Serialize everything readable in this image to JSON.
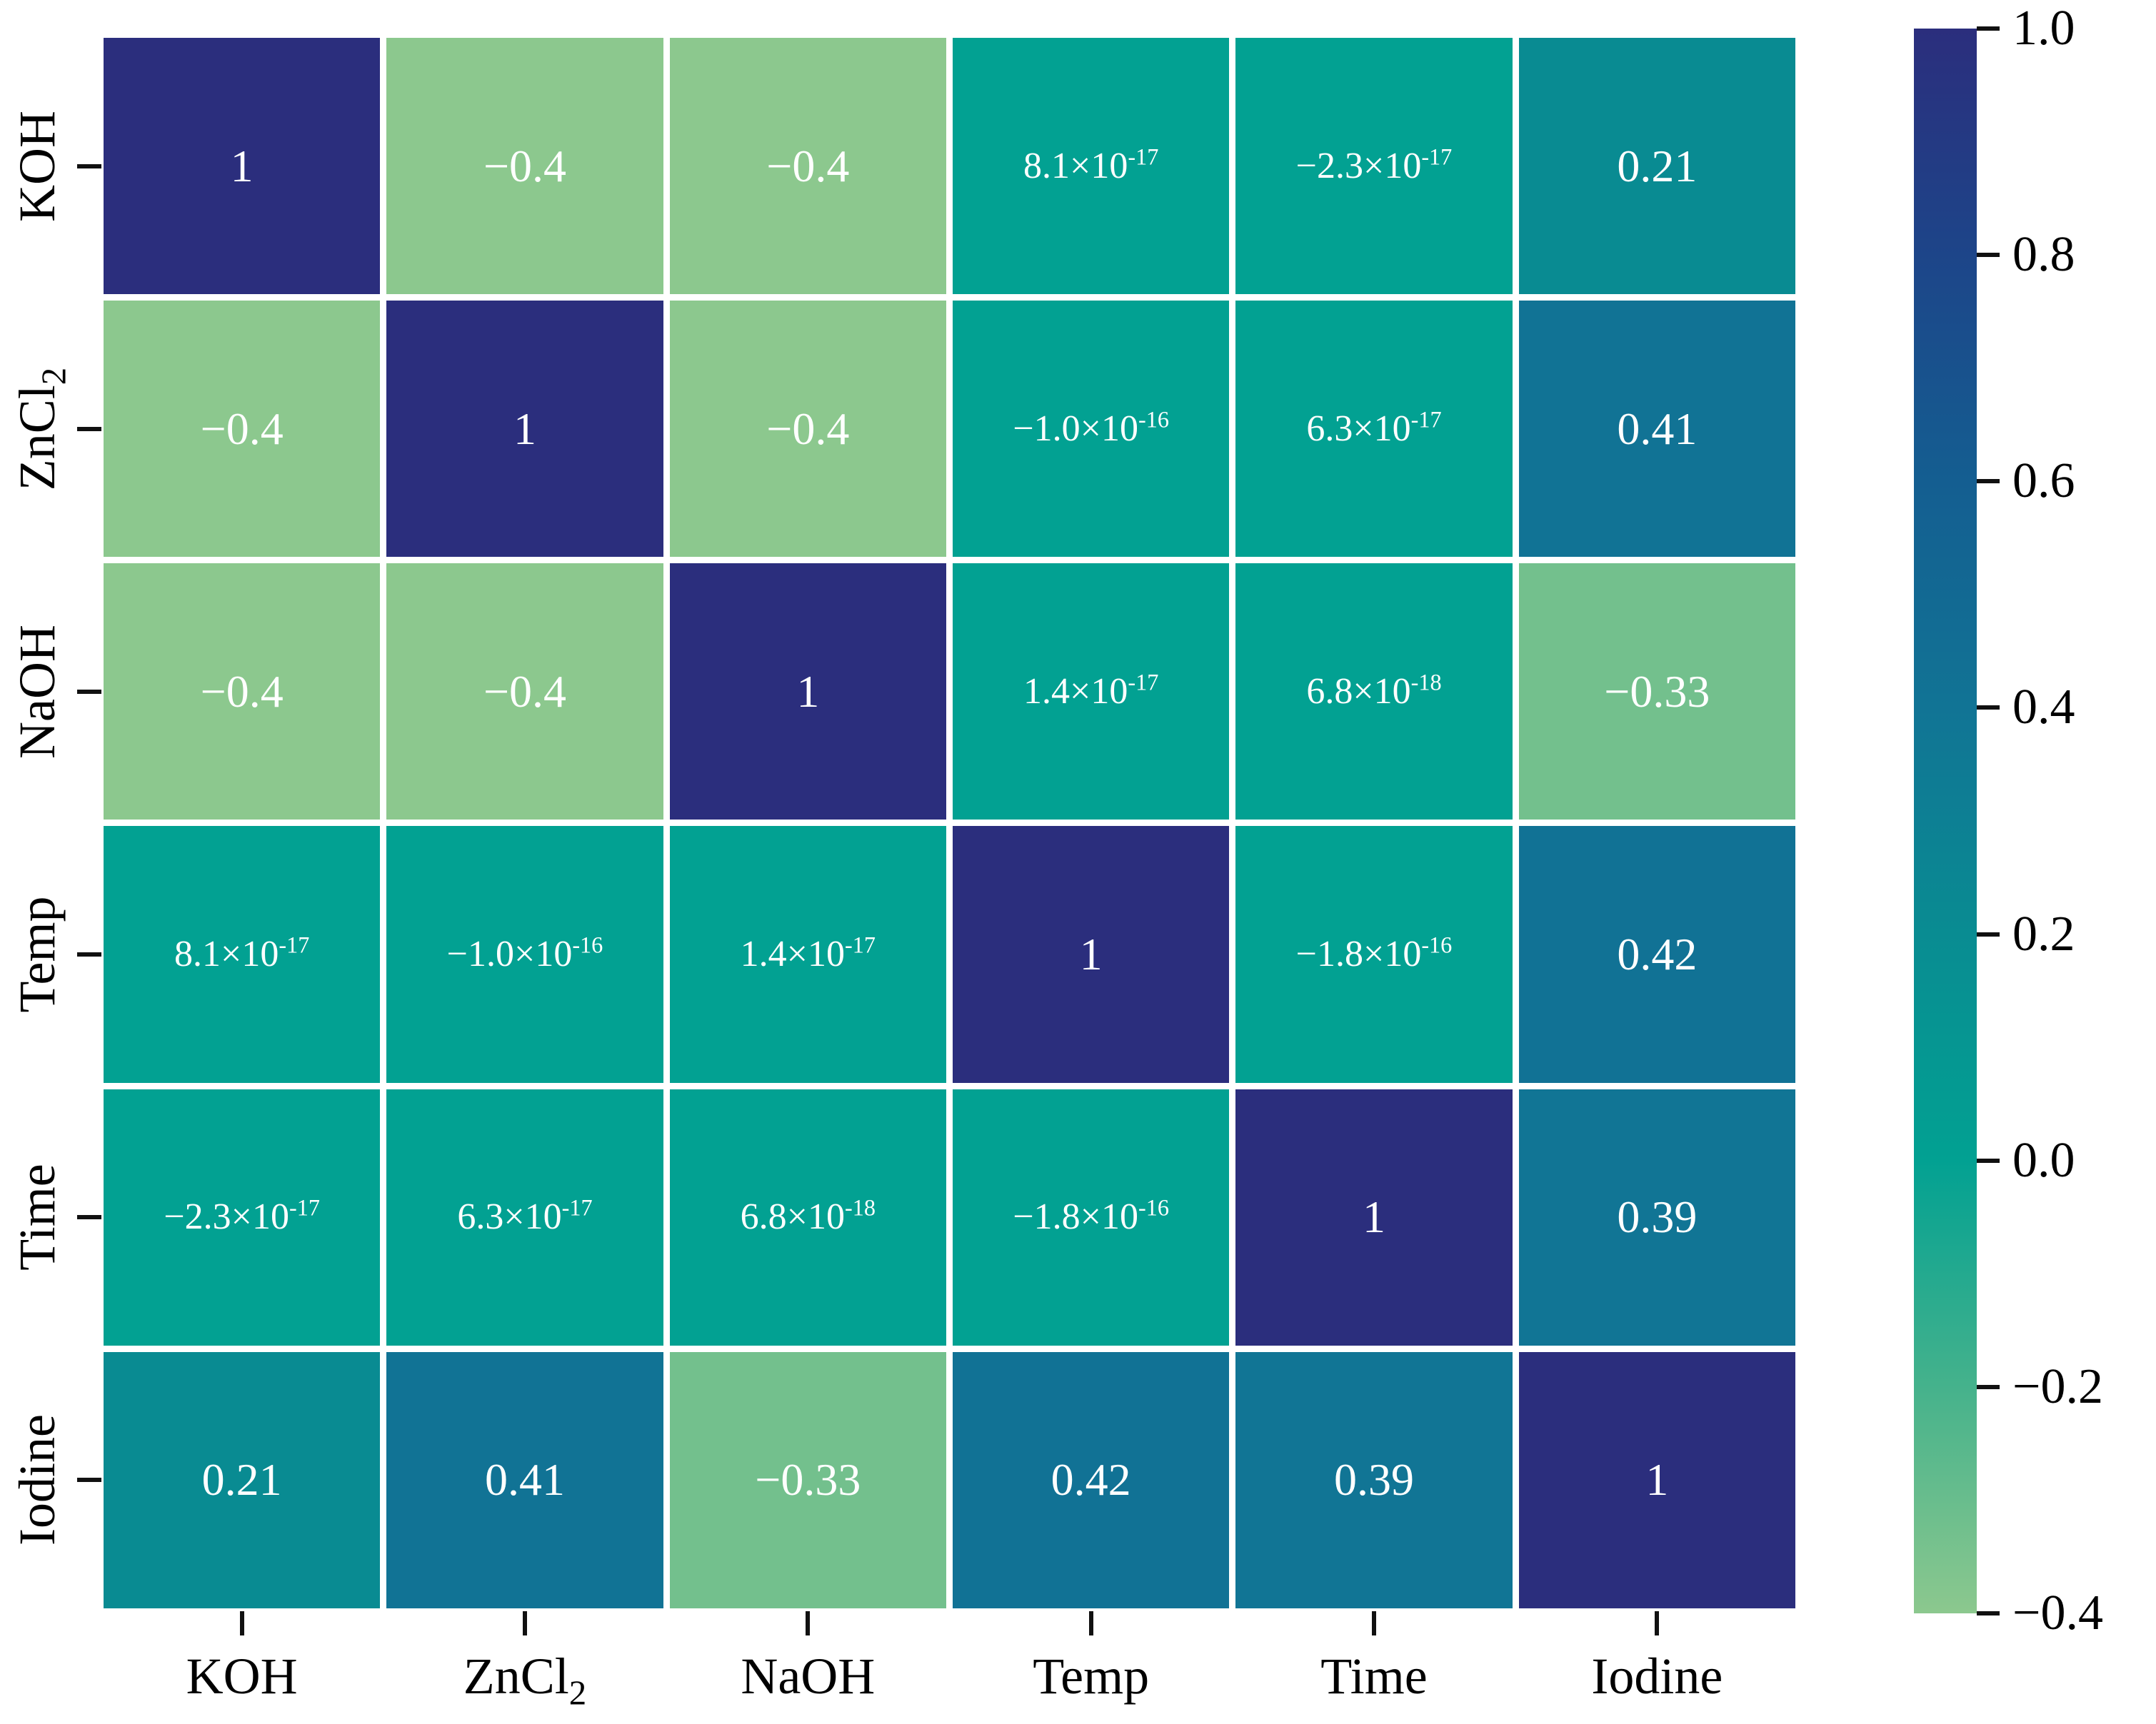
{
  "figure": {
    "background": "#ffffff",
    "cell_text_color": "#ffffff",
    "tick_color": "#111111",
    "label_color": "#000000"
  },
  "chart_data": {
    "type": "heatmap",
    "title": "",
    "xlabel": "",
    "ylabel": "",
    "categories": [
      "KOH",
      "ZnCl2",
      "NaOH",
      "Temp",
      "Time",
      "Iodine"
    ],
    "matrix": [
      [
        1,
        -0.4,
        -0.4,
        8.1e-17,
        -2.3e-17,
        0.21
      ],
      [
        -0.4,
        1,
        -0.4,
        -1e-16,
        6.3e-17,
        0.41
      ],
      [
        -0.4,
        -0.4,
        1,
        1.4e-17,
        6.8e-18,
        -0.33
      ],
      [
        8.1e-17,
        -1e-16,
        1.4e-17,
        1,
        -1.8e-16,
        0.42
      ],
      [
        -2.3e-17,
        6.3e-17,
        6.8e-18,
        -1.8e-16,
        1,
        0.39
      ],
      [
        0.21,
        0.41,
        -0.33,
        0.42,
        0.39,
        1
      ]
    ],
    "display": [
      [
        {
          "base": "1",
          "sup": ""
        },
        {
          "base": "−0.4",
          "sup": ""
        },
        {
          "base": "−0.4",
          "sup": ""
        },
        {
          "base": "8.1×10",
          "sup": "-17"
        },
        {
          "base": "−2.3×10",
          "sup": "-17"
        },
        {
          "base": "0.21",
          "sup": ""
        }
      ],
      [
        {
          "base": "−0.4",
          "sup": ""
        },
        {
          "base": "1",
          "sup": ""
        },
        {
          "base": "−0.4",
          "sup": ""
        },
        {
          "base": "−1.0×10",
          "sup": "-16"
        },
        {
          "base": "6.3×10",
          "sup": "-17"
        },
        {
          "base": "0.41",
          "sup": ""
        }
      ],
      [
        {
          "base": "−0.4",
          "sup": ""
        },
        {
          "base": "−0.4",
          "sup": ""
        },
        {
          "base": "1",
          "sup": ""
        },
        {
          "base": "1.4×10",
          "sup": "-17"
        },
        {
          "base": "6.8×10",
          "sup": "-18"
        },
        {
          "base": "−0.33",
          "sup": ""
        }
      ],
      [
        {
          "base": "8.1×10",
          "sup": "-17"
        },
        {
          "base": "−1.0×10",
          "sup": "-16"
        },
        {
          "base": "1.4×10",
          "sup": "-17"
        },
        {
          "base": "1",
          "sup": ""
        },
        {
          "base": "−1.8×10",
          "sup": "-16"
        },
        {
          "base": "0.42",
          "sup": ""
        }
      ],
      [
        {
          "base": "−2.3×10",
          "sup": "-17"
        },
        {
          "base": "6.3×10",
          "sup": "-17"
        },
        {
          "base": "6.8×10",
          "sup": "-18"
        },
        {
          "base": "−1.8×10",
          "sup": "-16"
        },
        {
          "base": "1",
          "sup": ""
        },
        {
          "base": "0.39",
          "sup": ""
        }
      ],
      [
        {
          "base": "0.21",
          "sup": ""
        },
        {
          "base": "0.41",
          "sup": ""
        },
        {
          "base": "−0.33",
          "sup": ""
        },
        {
          "base": "0.42",
          "sup": ""
        },
        {
          "base": "0.39",
          "sup": ""
        },
        {
          "base": "1",
          "sup": ""
        }
      ]
    ],
    "axis_labels": [
      {
        "base": "KOH",
        "sub": ""
      },
      {
        "base": "ZnCl",
        "sub": "2"
      },
      {
        "base": "NaOH",
        "sub": ""
      },
      {
        "base": "Temp",
        "sub": ""
      },
      {
        "base": "Time",
        "sub": ""
      },
      {
        "base": "Iodine",
        "sub": ""
      }
    ],
    "legend_position": "right",
    "grid": false,
    "colorbar": {
      "vmin": -0.4,
      "vmax": 1.0,
      "tick_values": [
        1.0,
        0.8,
        0.6,
        0.4,
        0.2,
        0.0,
        -0.2,
        -0.4
      ],
      "tick_labels": [
        "1.0",
        "0.8",
        "0.6",
        "0.4",
        "0.2",
        "0.0",
        "−0.2",
        "−0.4"
      ]
    },
    "colormap_stops": [
      {
        "v": 1.0,
        "c": "#2b2e7d"
      },
      {
        "v": 0.8,
        "c": "#1d4589"
      },
      {
        "v": 0.6,
        "c": "#145e91"
      },
      {
        "v": 0.4,
        "c": "#117495"
      },
      {
        "v": 0.2,
        "c": "#098c92"
      },
      {
        "v": 0.0,
        "c": "#02a192"
      },
      {
        "v": -0.2,
        "c": "#45b28c"
      },
      {
        "v": -0.4,
        "c": "#8cc88e"
      }
    ]
  }
}
